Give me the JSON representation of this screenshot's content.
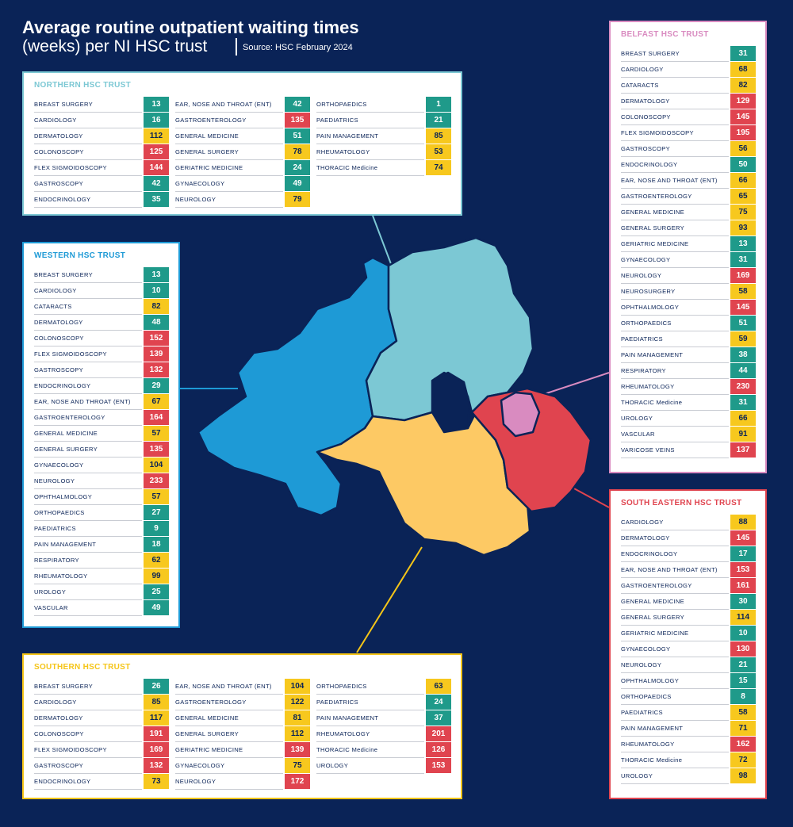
{
  "header": {
    "title_line1": "Average routine outpatient waiting times",
    "title_line2": "(weeks) per NI HSC trust",
    "source": "Source: HSC February 2024"
  },
  "trusts": [
    {
      "name": "NORTHERN HSC TRUST",
      "color": "#7cc8d4",
      "columns": [
        [
          {
            "label": "BREAST SURGERY",
            "value": 13,
            "color": "#1f9a8a"
          },
          {
            "label": "CARDIOLOGY",
            "value": 16,
            "color": "#1f9a8a"
          },
          {
            "label": "DERMATOLOGY",
            "value": 112,
            "color": "#f7c81e"
          },
          {
            "label": "COLONOSCOPY",
            "value": 125,
            "color": "#e0444f"
          },
          {
            "label": "FLEX SIGMOIDOSCOPY",
            "value": 144,
            "color": "#e0444f"
          },
          {
            "label": "GASTROSCOPY",
            "value": 42,
            "color": "#1f9a8a"
          },
          {
            "label": "ENDOCRINOLOGY",
            "value": 35,
            "color": "#1f9a8a"
          }
        ],
        [
          {
            "label": "EAR, NOSE AND THROAT (ENT)",
            "value": 42,
            "color": "#1f9a8a"
          },
          {
            "label": "GASTROENTEROLOGY",
            "value": 135,
            "color": "#e0444f"
          },
          {
            "label": "GENERAL MEDICINE",
            "value": 51,
            "color": "#1f9a8a"
          },
          {
            "label": "GENERAL SURGERY",
            "value": 78,
            "color": "#f7c81e"
          },
          {
            "label": "GERIATRIC MEDICINE",
            "value": 24,
            "color": "#1f9a8a"
          },
          {
            "label": "GYNAECOLOGY",
            "value": 49,
            "color": "#1f9a8a"
          },
          {
            "label": "NEUROLOGY",
            "value": 79,
            "color": "#f7c81e"
          }
        ],
        [
          {
            "label": "ORTHOPAEDICS",
            "value": 1,
            "color": "#1f9a8a"
          },
          {
            "label": "PAEDIATRICS",
            "value": 21,
            "color": "#1f9a8a"
          },
          {
            "label": "PAIN MANAGEMENT",
            "value": 85,
            "color": "#f7c81e"
          },
          {
            "label": "RHEUMATOLOGY",
            "value": 53,
            "color": "#f7c81e"
          },
          {
            "label": "THORACIC Medicine",
            "value": 74,
            "color": "#f7c81e"
          }
        ]
      ]
    },
    {
      "name": "WESTERN HSC TRUST",
      "color": "#1e9ad6",
      "columns": [
        [
          {
            "label": "BREAST SURGERY",
            "value": 13,
            "color": "#1f9a8a"
          },
          {
            "label": "CARDIOLOGY",
            "value": 10,
            "color": "#1f9a8a"
          },
          {
            "label": "CATARACTS",
            "value": 82,
            "color": "#f7c81e"
          },
          {
            "label": "DERMATOLOGY",
            "value": 48,
            "color": "#1f9a8a"
          },
          {
            "label": "COLONOSCOPY",
            "value": 152,
            "color": "#e0444f"
          },
          {
            "label": "FLEX SIGMOIDOSCOPY",
            "value": 139,
            "color": "#e0444f"
          },
          {
            "label": "GASTROSCOPY",
            "value": 132,
            "color": "#e0444f"
          },
          {
            "label": "ENDOCRINOLOGY",
            "value": 29,
            "color": "#1f9a8a"
          },
          {
            "label": "EAR, NOSE AND THROAT (ENT)",
            "value": 67,
            "color": "#f7c81e"
          },
          {
            "label": "GASTROENTEROLOGY",
            "value": 164,
            "color": "#e0444f"
          },
          {
            "label": "GENERAL MEDICINE",
            "value": 57,
            "color": "#f7c81e"
          },
          {
            "label": "GENERAL SURGERY",
            "value": 135,
            "color": "#e0444f"
          },
          {
            "label": "GYNAECOLOGY",
            "value": 104,
            "color": "#f7c81e"
          },
          {
            "label": "NEUROLOGY",
            "value": 233,
            "color": "#e0444f"
          },
          {
            "label": "OPHTHALMOLOGY",
            "value": 57,
            "color": "#f7c81e"
          },
          {
            "label": "ORTHOPAEDICS",
            "value": 27,
            "color": "#1f9a8a"
          },
          {
            "label": "PAEDIATRICS",
            "value": 9,
            "color": "#1f9a8a"
          },
          {
            "label": "PAIN MANAGEMENT",
            "value": 18,
            "color": "#1f9a8a"
          },
          {
            "label": "RESPIRATORY",
            "value": 62,
            "color": "#f7c81e"
          },
          {
            "label": "RHEUMATOLOGY",
            "value": 99,
            "color": "#f7c81e"
          },
          {
            "label": "UROLOGY",
            "value": 25,
            "color": "#1f9a8a"
          },
          {
            "label": "VASCULAR",
            "value": 49,
            "color": "#1f9a8a"
          }
        ]
      ]
    },
    {
      "name": "SOUTHERN HSC TRUST",
      "color": "#f5c518",
      "columns": [
        [
          {
            "label": "BREAST SURGERY",
            "value": 26,
            "color": "#1f9a8a"
          },
          {
            "label": "CARDIOLOGY",
            "value": 85,
            "color": "#f7c81e"
          },
          {
            "label": "DERMATOLOGY",
            "value": 117,
            "color": "#f7c81e"
          },
          {
            "label": "COLONOSCOPY",
            "value": 191,
            "color": "#e0444f"
          },
          {
            "label": "FLEX SIGMOIDOSCOPY",
            "value": 169,
            "color": "#e0444f"
          },
          {
            "label": "GASTROSCOPY",
            "value": 132,
            "color": "#e0444f"
          },
          {
            "label": "ENDOCRINOLOGY",
            "value": 73,
            "color": "#f7c81e"
          }
        ],
        [
          {
            "label": "EAR, NOSE AND THROAT (ENT)",
            "value": 104,
            "color": "#f7c81e"
          },
          {
            "label": "GASTROENTEROLOGY",
            "value": 122,
            "color": "#f7c81e"
          },
          {
            "label": "GENERAL MEDICINE",
            "value": 81,
            "color": "#f7c81e"
          },
          {
            "label": "GENERAL SURGERY",
            "value": 112,
            "color": "#f7c81e"
          },
          {
            "label": "GERIATRIC MEDICINE",
            "value": 139,
            "color": "#e0444f"
          },
          {
            "label": "GYNAECOLOGY",
            "value": 75,
            "color": "#f7c81e"
          },
          {
            "label": "NEUROLOGY",
            "value": 172,
            "color": "#e0444f"
          }
        ],
        [
          {
            "label": "ORTHOPAEDICS",
            "value": 63,
            "color": "#f7c81e"
          },
          {
            "label": "PAEDIATRICS",
            "value": 24,
            "color": "#1f9a8a"
          },
          {
            "label": "PAIN MANAGEMENT",
            "value": 37,
            "color": "#1f9a8a"
          },
          {
            "label": "RHEUMATOLOGY",
            "value": 201,
            "color": "#e0444f"
          },
          {
            "label": "THORACIC Medicine",
            "value": 126,
            "color": "#e0444f"
          },
          {
            "label": "UROLOGY",
            "value": 153,
            "color": "#e0444f"
          }
        ]
      ]
    },
    {
      "name": "BELFAST HSC TRUST",
      "color": "#d98bc0",
      "columns": [
        [
          {
            "label": "BREAST SURGERY",
            "value": 31,
            "color": "#1f9a8a"
          },
          {
            "label": "CARDIOLOGY",
            "value": 68,
            "color": "#f7c81e"
          },
          {
            "label": "CATARACTS",
            "value": 82,
            "color": "#f7c81e"
          },
          {
            "label": "DERMATOLOGY",
            "value": 129,
            "color": "#e0444f"
          },
          {
            "label": "COLONOSCOPY",
            "value": 145,
            "color": "#e0444f"
          },
          {
            "label": "FLEX SIGMOIDOSCOPY",
            "value": 195,
            "color": "#e0444f"
          },
          {
            "label": "GASTROSCOPY",
            "value": 56,
            "color": "#f7c81e"
          },
          {
            "label": "ENDOCRINOLOGY",
            "value": 50,
            "color": "#1f9a8a"
          },
          {
            "label": "EAR, NOSE AND THROAT (ENT)",
            "value": 66,
            "color": "#f7c81e"
          },
          {
            "label": "GASTROENTEROLOGY",
            "value": 65,
            "color": "#f7c81e"
          },
          {
            "label": "GENERAL MEDICINE",
            "value": 75,
            "color": "#f7c81e"
          },
          {
            "label": "GENERAL SURGERY",
            "value": 93,
            "color": "#f7c81e"
          },
          {
            "label": "GERIATRIC MEDICINE",
            "value": 13,
            "color": "#1f9a8a"
          },
          {
            "label": "GYNAECOLOGY",
            "value": 31,
            "color": "#1f9a8a"
          },
          {
            "label": "NEUROLOGY",
            "value": 169,
            "color": "#e0444f"
          },
          {
            "label": "NEUROSURGERY",
            "value": 58,
            "color": "#f7c81e"
          },
          {
            "label": "OPHTHALMOLOGY",
            "value": 145,
            "color": "#e0444f"
          },
          {
            "label": "ORTHOPAEDICS",
            "value": 51,
            "color": "#1f9a8a"
          },
          {
            "label": "PAEDIATRICS",
            "value": 59,
            "color": "#f7c81e"
          },
          {
            "label": "PAIN MANAGEMENT",
            "value": 38,
            "color": "#1f9a8a"
          },
          {
            "label": "RESPIRATORY",
            "value": 44,
            "color": "#1f9a8a"
          },
          {
            "label": "RHEUMATOLOGY",
            "value": 230,
            "color": "#e0444f"
          },
          {
            "label": "THORACIC Medicine",
            "value": 31,
            "color": "#1f9a8a"
          },
          {
            "label": "UROLOGY",
            "value": 66,
            "color": "#f7c81e"
          },
          {
            "label": "VASCULAR",
            "value": 91,
            "color": "#f7c81e"
          },
          {
            "label": "VARICOSE VEINS",
            "value": 137,
            "color": "#e0444f"
          }
        ]
      ]
    },
    {
      "name": "SOUTH EASTERN HSC TRUST",
      "color": "#e0444f",
      "columns": [
        [
          {
            "label": "CARDIOLOGY",
            "value": 88,
            "color": "#f7c81e"
          },
          {
            "label": "DERMATOLOGY",
            "value": 145,
            "color": "#e0444f"
          },
          {
            "label": "ENDOCRINOLOGY",
            "value": 17,
            "color": "#1f9a8a"
          },
          {
            "label": "EAR, NOSE AND THROAT (ENT)",
            "value": 153,
            "color": "#e0444f"
          },
          {
            "label": "GASTROENTEROLOGY",
            "value": 161,
            "color": "#e0444f"
          },
          {
            "label": "GENERAL MEDICINE",
            "value": 30,
            "color": "#1f9a8a"
          },
          {
            "label": "GENERAL SURGERY",
            "value": 114,
            "color": "#f7c81e"
          },
          {
            "label": "GERIATRIC MEDICINE",
            "value": 10,
            "color": "#1f9a8a"
          },
          {
            "label": "GYNAECOLOGY",
            "value": 130,
            "color": "#e0444f"
          },
          {
            "label": "NEUROLOGY",
            "value": 21,
            "color": "#1f9a8a"
          },
          {
            "label": "OPHTHALMOLOGY",
            "value": 15,
            "color": "#1f9a8a"
          },
          {
            "label": "ORTHOPAEDICS",
            "value": 8,
            "color": "#1f9a8a"
          },
          {
            "label": "PAEDIATRICS",
            "value": 58,
            "color": "#f7c81e"
          },
          {
            "label": "PAIN MANAGEMENT",
            "value": 71,
            "color": "#f7c81e"
          },
          {
            "label": "RHEUMATOLOGY",
            "value": 162,
            "color": "#e0444f"
          },
          {
            "label": "THORACIC Medicine",
            "value": 72,
            "color": "#f7c81e"
          },
          {
            "label": "UROLOGY",
            "value": 98,
            "color": "#f7c81e"
          }
        ]
      ]
    }
  ]
}
